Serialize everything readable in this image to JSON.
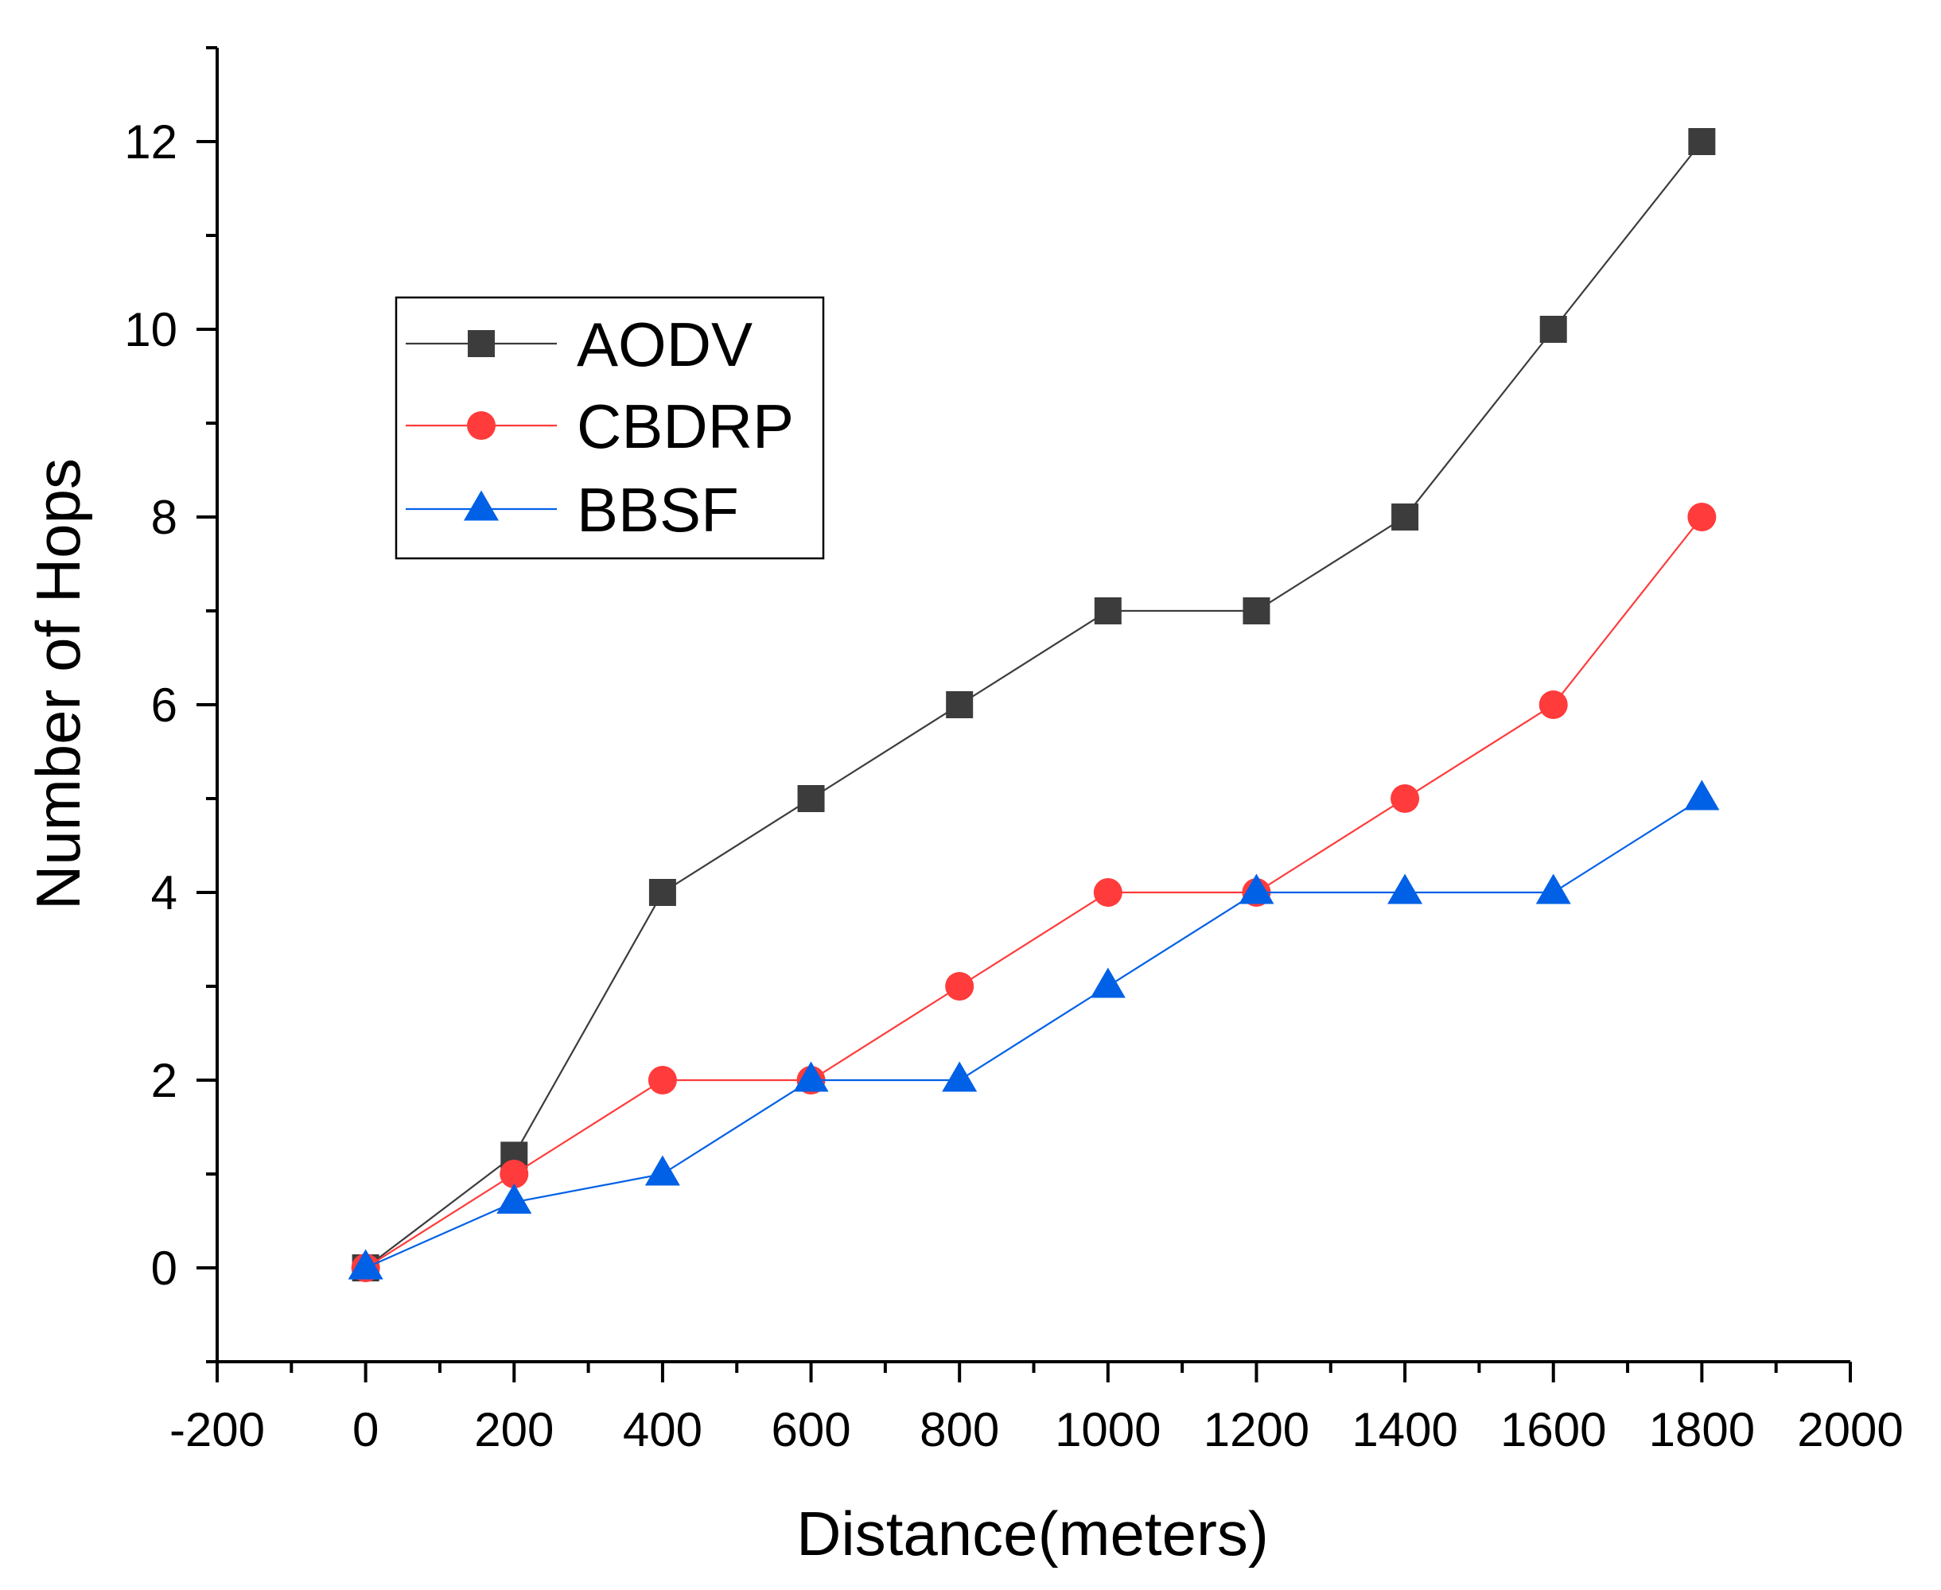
{
  "chart_data": {
    "type": "line",
    "title": "",
    "xlabel": "Distance(meters)",
    "ylabel": "Number of Hops",
    "xlim": [
      -200,
      2000
    ],
    "ylim": [
      -1,
      13
    ],
    "x_ticks": [
      -200,
      0,
      200,
      400,
      600,
      800,
      1000,
      1200,
      1400,
      1600,
      1800,
      2000
    ],
    "x_tick_labels": [
      "-200",
      "0",
      "200",
      "400",
      "600",
      "800",
      "1000",
      "1200",
      "1400",
      "1600",
      "1800",
      "2000"
    ],
    "y_ticks": [
      0,
      2,
      4,
      6,
      8,
      10,
      12
    ],
    "y_tick_labels": [
      "0",
      "2",
      "4",
      "6",
      "8",
      "10",
      "12"
    ],
    "grid": false,
    "legend_position": "upper-left",
    "series": [
      {
        "name": "AODV",
        "color": "#3c3c3c",
        "marker": "square",
        "x": [
          0,
          200,
          400,
          600,
          800,
          1000,
          1200,
          1400,
          1600,
          1800
        ],
        "y": [
          0,
          1.2,
          4,
          5,
          6,
          7,
          7,
          8,
          10,
          12
        ]
      },
      {
        "name": "CBDRP",
        "color": "#ff3b3b",
        "marker": "circle",
        "x": [
          0,
          200,
          400,
          600,
          800,
          1000,
          1200,
          1400,
          1600,
          1800
        ],
        "y": [
          0,
          1,
          2,
          2,
          3,
          4,
          4,
          5,
          6,
          8
        ]
      },
      {
        "name": "BBSF",
        "color": "#0060e6",
        "marker": "triangle",
        "x": [
          0,
          200,
          400,
          600,
          800,
          1000,
          1200,
          1400,
          1600,
          1800
        ],
        "y": [
          0,
          0.7,
          1,
          2,
          2,
          3,
          4,
          4,
          4,
          5
        ]
      }
    ]
  }
}
